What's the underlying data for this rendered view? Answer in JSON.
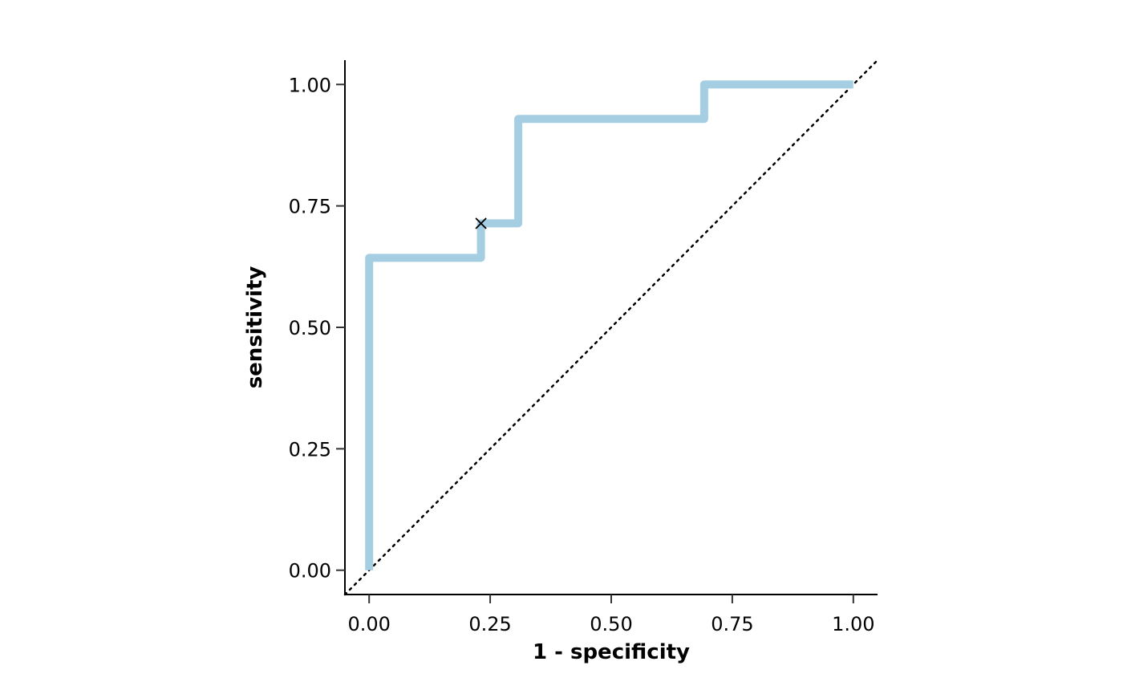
{
  "chart_data": {
    "type": "line",
    "title": "",
    "xlabel": "1 - specificity",
    "ylabel": "sensitivity",
    "xlim": [
      -0.05,
      1.05
    ],
    "ylim": [
      -0.05,
      1.05
    ],
    "x_ticks": [
      "0.00",
      "0.25",
      "0.50",
      "0.75",
      "1.00"
    ],
    "y_ticks": [
      "0.00",
      "0.25",
      "0.50",
      "0.75",
      "1.00"
    ],
    "grid": false,
    "legend": "none",
    "series": [
      {
        "kind": "step",
        "color": "#a6cee3",
        "x": [
          0,
          0,
          0.231,
          0.231,
          0.308,
          0.308,
          0.692,
          0.692,
          1.0
        ],
        "y": [
          0,
          0.643,
          0.643,
          0.714,
          0.714,
          0.929,
          0.929,
          1.0,
          1.0
        ]
      }
    ],
    "reference_line": {
      "style": "dotted",
      "color": "#000000",
      "from": [
        -0.05,
        -0.05
      ],
      "to": [
        1.05,
        1.05
      ]
    },
    "marker": {
      "shape": "x",
      "x": 0.231,
      "y": 0.714
    }
  }
}
